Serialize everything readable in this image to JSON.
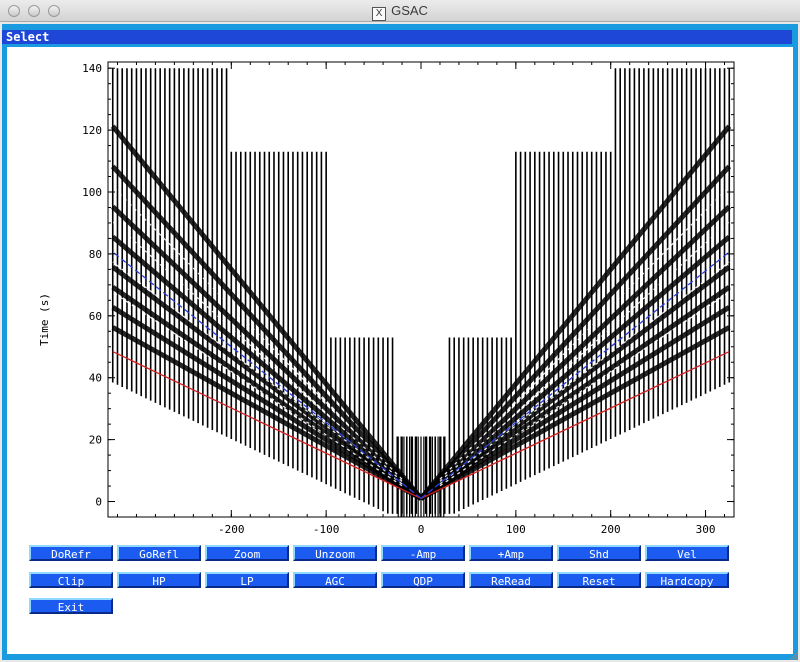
{
  "window": {
    "title": "GSAC",
    "menu_label": "Select"
  },
  "buttons": {
    "row1": [
      "DoRefr",
      "GoRefl",
      "Zoom",
      "Unzoom",
      "-Amp",
      "+Amp",
      "Shd",
      "Vel"
    ],
    "row2": [
      "Clip",
      "HP",
      "LP",
      "AGC",
      "QDP",
      "ReRead",
      "Reset",
      "Hardcopy"
    ],
    "row3": [
      "Exit"
    ]
  },
  "chart_data": {
    "type": "seismic record section",
    "ylabel": "Time (s)",
    "xlabel": "",
    "xticks": [
      -200,
      -100,
      0,
      100,
      200,
      300
    ],
    "yticks": [
      0,
      20,
      40,
      60,
      80,
      100,
      120,
      140
    ],
    "xlim": [
      -330,
      330
    ],
    "ylim": [
      -5,
      142
    ],
    "traces": {
      "offset_min": -325,
      "offset_max": 325,
      "spacing": 5,
      "center_gap": 5,
      "top_time_far": 140,
      "top_time_mid": 113,
      "top_time_near": 53,
      "top_time_center": 21
    },
    "picks": [
      {
        "name": "red",
        "color": "#d42020",
        "slope_s_per_km": 0.146,
        "t0": 1.0
      },
      {
        "name": "blue",
        "color": "#2a3fd8",
        "slope_s_per_km": 0.245,
        "t0": 1.0
      }
    ]
  }
}
